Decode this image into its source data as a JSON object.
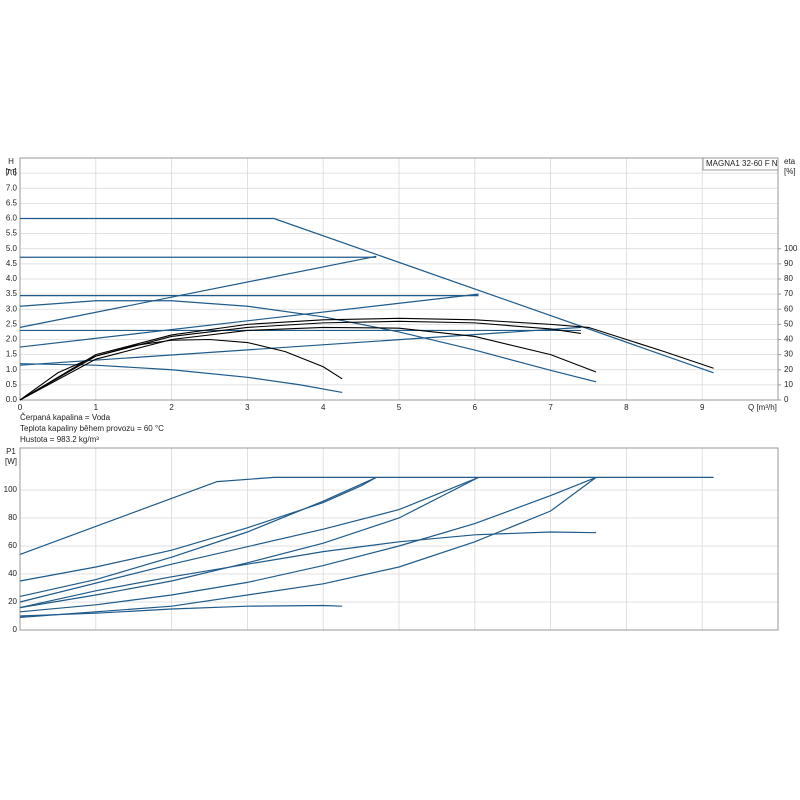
{
  "chart_data": [
    {
      "type": "line",
      "title": "MAGNA1 32-60 F N",
      "ylabel": "H",
      "yunit": "[m]",
      "y2label": "eta",
      "y2unit": "[%]",
      "xlabel": "Q [m³/h]",
      "annotations": [
        "Čerpaná kapalina = Voda",
        "Teplota kapaliny během provozu = 60 °C",
        "Hustota = 983.2 kg/m³"
      ],
      "xlim": [
        0,
        10
      ],
      "xticks": [
        0,
        1,
        2,
        3,
        4,
        5,
        6,
        7,
        8,
        9
      ],
      "xtick_labels": true,
      "ylim": [
        0,
        8
      ],
      "yticks": [
        {
          "value": 0,
          "label": "0.0"
        },
        0.5,
        {
          "value": 1,
          "label": "1.0"
        },
        1.5,
        {
          "value": 2,
          "label": "2.0"
        },
        2.5,
        {
          "value": 3,
          "label": "3.0"
        },
        3.5,
        {
          "value": 4,
          "label": "4.0"
        },
        4.5,
        {
          "value": 5,
          "label": "5.0"
        },
        5.5,
        {
          "value": 6,
          "label": "6.0"
        },
        6.5,
        {
          "value": 7,
          "label": "7.0"
        },
        7.5
      ],
      "y2lim": [
        0,
        160
      ],
      "y2ticks": [
        0,
        10,
        20,
        30,
        40,
        50,
        60,
        70,
        80,
        90,
        100
      ],
      "grid": true,
      "series": [
        {
          "color": "#1f5a8a",
          "x": [
            0,
            3.35,
            9.15
          ],
          "values": [
            6.0,
            6.0,
            0.9
          ]
        },
        {
          "color": "#1f5a8a",
          "x": [
            0,
            4.7
          ],
          "values": [
            4.72,
            4.72
          ]
        },
        {
          "color": "#1f5a8a",
          "x": [
            0,
            4.7
          ],
          "values": [
            2.4,
            4.75
          ]
        },
        {
          "color": "#1f5a8a",
          "x": [
            0,
            6.05
          ],
          "values": [
            3.45,
            3.45
          ]
        },
        {
          "color": "#1f5a8a",
          "x": [
            0,
            6.05
          ],
          "values": [
            1.75,
            3.5
          ]
        },
        {
          "color": "#1f5a8a",
          "x": [
            0,
            7.4
          ],
          "values": [
            2.3,
            2.3
          ]
        },
        {
          "color": "#1f5a8a",
          "x": [
            0,
            7.4
          ],
          "values": [
            1.15,
            2.4
          ]
        },
        {
          "color": "#1f5a8a",
          "x": [
            0,
            1,
            2,
            3,
            4,
            5,
            6,
            7,
            7.6
          ],
          "values": [
            3.1,
            3.28,
            3.28,
            3.1,
            2.75,
            2.25,
            1.65,
            0.98,
            0.6
          ]
        },
        {
          "color": "#1f5a8a",
          "x": [
            0,
            1,
            2,
            3,
            3.7,
            4.25
          ],
          "values": [
            1.2,
            1.15,
            1.0,
            0.75,
            0.5,
            0.25
          ]
        },
        {
          "color": "#000000",
          "axis": "y2",
          "x": [
            0,
            0.5,
            1,
            1.5,
            2,
            2.5,
            3,
            3.5,
            4,
            4.25
          ],
          "values": [
            0,
            18,
            29,
            36,
            39.5,
            40,
            38,
            32,
            22,
            14
          ]
        },
        {
          "color": "#000000",
          "axis": "y2",
          "x": [
            0,
            1,
            2,
            3,
            4,
            5,
            6,
            7,
            7.6
          ],
          "values": [
            0,
            27,
            40,
            46,
            48,
            47.5,
            42,
            30,
            18.5
          ]
        },
        {
          "color": "#000000",
          "axis": "y2",
          "x": [
            0,
            1,
            2,
            3,
            4,
            5,
            6,
            7,
            7.4
          ],
          "values": [
            0,
            29,
            42,
            48,
            51,
            52,
            51,
            47,
            44
          ]
        },
        {
          "color": "#000000",
          "axis": "y2",
          "x": [
            0,
            1,
            2,
            3,
            4,
            5,
            6,
            7,
            7.5,
            8,
            8.5,
            9.15
          ],
          "values": [
            0,
            30,
            43,
            50,
            53,
            54,
            53,
            50,
            48,
            40,
            32,
            21
          ]
        }
      ]
    },
    {
      "type": "line",
      "ylabel": "P1",
      "yunit": "[W]",
      "xlim": [
        0,
        10
      ],
      "xticks": [
        0,
        1,
        2,
        3,
        4,
        5,
        6,
        7,
        8,
        9
      ],
      "xtick_labels": false,
      "ylim": [
        0,
        130
      ],
      "yticks": [
        0,
        20,
        40,
        60,
        80,
        100
      ],
      "grid": true,
      "series": [
        {
          "color": "#1f5a8a",
          "x": [
            0,
            2.6,
            3.35,
            9.15
          ],
          "values": [
            54,
            106,
            109,
            109
          ]
        },
        {
          "color": "#1f5a8a",
          "x": [
            0,
            1,
            2,
            3,
            4,
            4.5,
            4.7
          ],
          "values": [
            35,
            45,
            57,
            73,
            91,
            103,
            109
          ]
        },
        {
          "color": "#1f5a8a",
          "x": [
            0,
            1,
            2,
            3,
            4,
            4.7
          ],
          "values": [
            24,
            36,
            52,
            70,
            92,
            109
          ]
        },
        {
          "color": "#1f5a8a",
          "x": [
            0,
            1,
            2,
            3,
            4,
            5,
            6.05
          ],
          "values": [
            16,
            25,
            35,
            48,
            62,
            80,
            109
          ]
        },
        {
          "color": "#1f5a8a",
          "x": [
            0,
            2,
            4,
            5,
            6.05
          ],
          "values": [
            20,
            47,
            72,
            86,
            109
          ]
        },
        {
          "color": "#1f5a8a",
          "x": [
            0,
            1,
            2,
            3,
            4,
            5,
            6,
            7,
            7.6
          ],
          "values": [
            13,
            18,
            25,
            34,
            46,
            60,
            76,
            96,
            109
          ]
        },
        {
          "color": "#1f5a8a",
          "x": [
            0,
            2,
            4,
            5,
            6,
            7,
            7.6
          ],
          "values": [
            9,
            17,
            33,
            45,
            63,
            85,
            109
          ]
        },
        {
          "color": "#1f5a8a",
          "x": [
            0,
            1,
            2,
            3,
            4,
            5,
            6,
            7,
            7.6
          ],
          "values": [
            16,
            28,
            38,
            47,
            56,
            63,
            68,
            70,
            69.5
          ]
        },
        {
          "color": "#1f5a8a",
          "x": [
            0,
            1,
            2,
            3,
            4,
            4.25
          ],
          "values": [
            10,
            12,
            15,
            17,
            17.5,
            17
          ]
        }
      ]
    }
  ]
}
